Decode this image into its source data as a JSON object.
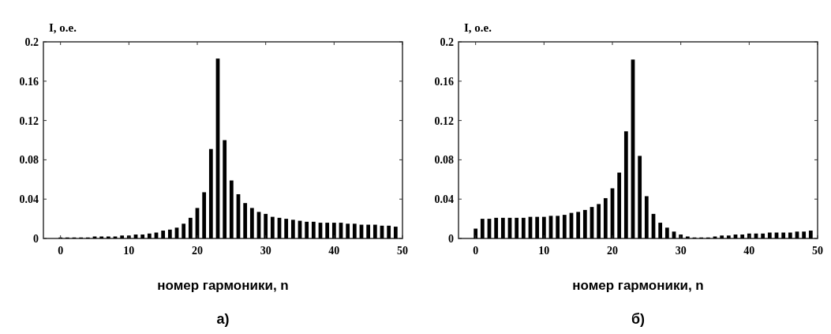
{
  "chart_data": [
    {
      "type": "bar",
      "ylabel": "I, o.e.",
      "xlabel": "номер гармоники, n",
      "annotations": [
        "а)"
      ],
      "color": "#000000",
      "x": [
        0,
        1,
        2,
        3,
        4,
        5,
        6,
        7,
        8,
        9,
        10,
        11,
        12,
        13,
        14,
        15,
        16,
        17,
        18,
        19,
        20,
        21,
        22,
        23,
        24,
        25,
        26,
        27,
        28,
        29,
        30,
        31,
        32,
        33,
        34,
        35,
        36,
        37,
        38,
        39,
        40,
        41,
        42,
        43,
        44,
        45,
        46,
        47,
        48,
        49
      ],
      "values": [
        0.001,
        0.001,
        0.001,
        0.001,
        0.001,
        0.002,
        0.002,
        0.002,
        0.002,
        0.003,
        0.003,
        0.004,
        0.004,
        0.005,
        0.006,
        0.008,
        0.009,
        0.011,
        0.015,
        0.021,
        0.031,
        0.047,
        0.091,
        0.183,
        0.1,
        0.059,
        0.045,
        0.036,
        0.031,
        0.027,
        0.025,
        0.022,
        0.021,
        0.02,
        0.019,
        0.018,
        0.017,
        0.017,
        0.016,
        0.016,
        0.016,
        0.016,
        0.015,
        0.015,
        0.014,
        0.014,
        0.014,
        0.013,
        0.013,
        0.012
      ],
      "xlim": [
        -2.5,
        50
      ],
      "ylim": [
        0,
        0.2
      ],
      "xticks": [
        0,
        10,
        20,
        30,
        40,
        50
      ],
      "yticks": [
        0,
        0.04,
        0.08,
        0.12,
        0.16,
        0.2
      ],
      "grid": false
    },
    {
      "type": "bar",
      "ylabel": "I, o.e.",
      "xlabel": "номер гармоники, n",
      "annotations": [
        "б)"
      ],
      "color": "#000000",
      "x": [
        0,
        1,
        2,
        3,
        4,
        5,
        6,
        7,
        8,
        9,
        10,
        11,
        12,
        13,
        14,
        15,
        16,
        17,
        18,
        19,
        20,
        21,
        22,
        23,
        24,
        25,
        26,
        27,
        28,
        29,
        30,
        31,
        32,
        33,
        34,
        35,
        36,
        37,
        38,
        39,
        40,
        41,
        42,
        43,
        44,
        45,
        46,
        47,
        48,
        49
      ],
      "values": [
        0.01,
        0.02,
        0.02,
        0.021,
        0.021,
        0.021,
        0.021,
        0.021,
        0.022,
        0.022,
        0.022,
        0.023,
        0.023,
        0.024,
        0.026,
        0.027,
        0.029,
        0.032,
        0.035,
        0.041,
        0.051,
        0.067,
        0.109,
        0.182,
        0.084,
        0.043,
        0.025,
        0.016,
        0.011,
        0.007,
        0.004,
        0.002,
        0.001,
        0.001,
        0.001,
        0.002,
        0.003,
        0.003,
        0.004,
        0.004,
        0.005,
        0.005,
        0.005,
        0.006,
        0.006,
        0.006,
        0.006,
        0.007,
        0.007,
        0.008
      ],
      "xlim": [
        -2.5,
        50
      ],
      "ylim": [
        0,
        0.2
      ],
      "xticks": [
        0,
        10,
        20,
        30,
        40,
        50
      ],
      "yticks": [
        0,
        0.04,
        0.08,
        0.12,
        0.16,
        0.2
      ],
      "grid": false
    }
  ]
}
